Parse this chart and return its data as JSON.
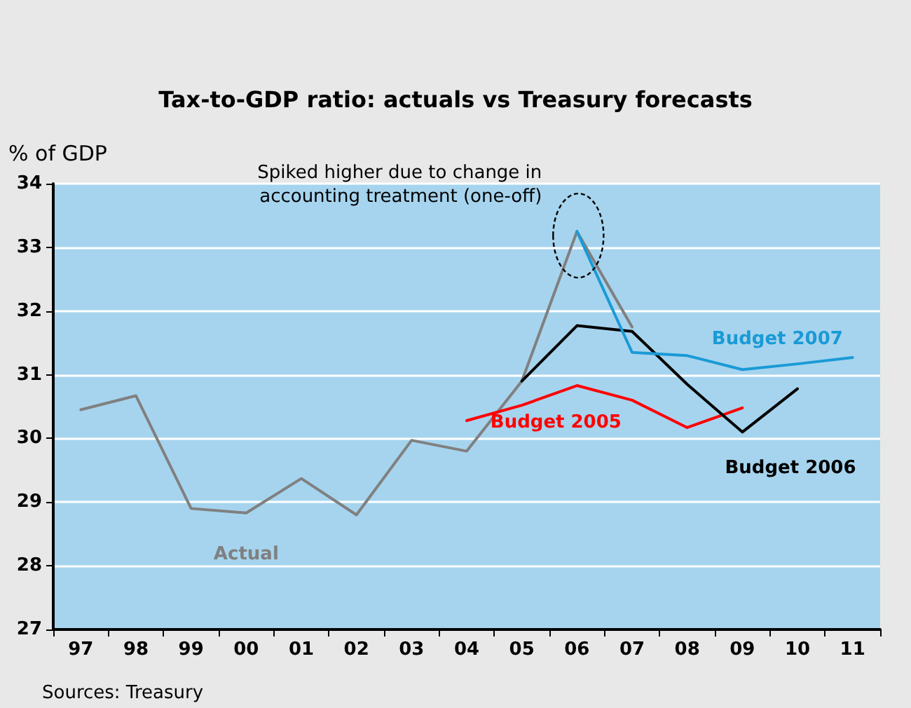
{
  "chart_data": {
    "type": "line",
    "title": "Tax-to-GDP ratio: actuals vs Treasury forecasts",
    "ylabel": "% of GDP",
    "categories": [
      "97",
      "98",
      "99",
      "00",
      "01",
      "02",
      "03",
      "04",
      "05",
      "06",
      "07",
      "08",
      "09",
      "10",
      "11"
    ],
    "series": [
      {
        "name": "Actual",
        "color": "#808080",
        "values": [
          30.45,
          30.67,
          28.9,
          28.83,
          29.37,
          28.8,
          29.97,
          29.8,
          30.9,
          33.25,
          31.75,
          null,
          null,
          null,
          null
        ]
      },
      {
        "name": "Budget 2005",
        "color": "#ff0000",
        "values": [
          null,
          null,
          null,
          null,
          null,
          null,
          null,
          30.28,
          30.52,
          30.83,
          30.6,
          30.17,
          30.48,
          null,
          null
        ]
      },
      {
        "name": "Budget 2006",
        "color": "#000000",
        "values": [
          null,
          null,
          null,
          null,
          null,
          null,
          null,
          null,
          30.9,
          31.77,
          31.68,
          30.85,
          30.1,
          30.78,
          null
        ]
      },
      {
        "name": "Budget 2007",
        "color": "#1a9ad6",
        "values": [
          null,
          null,
          null,
          null,
          null,
          null,
          null,
          null,
          null,
          33.25,
          31.35,
          31.3,
          31.08,
          31.17,
          31.27
        ]
      }
    ],
    "ylim": [
      27,
      34
    ],
    "yticks": [
      27,
      28,
      29,
      30,
      31,
      32,
      33,
      34
    ],
    "grid": "y",
    "legend": false,
    "marker": "none",
    "line_style": "solid",
    "annotations": [
      {
        "text": "Spiked higher due to change in\naccounting treatment (one-off)",
        "x": "06",
        "y": 33.25
      },
      "Sources: Treasury"
    ]
  }
}
